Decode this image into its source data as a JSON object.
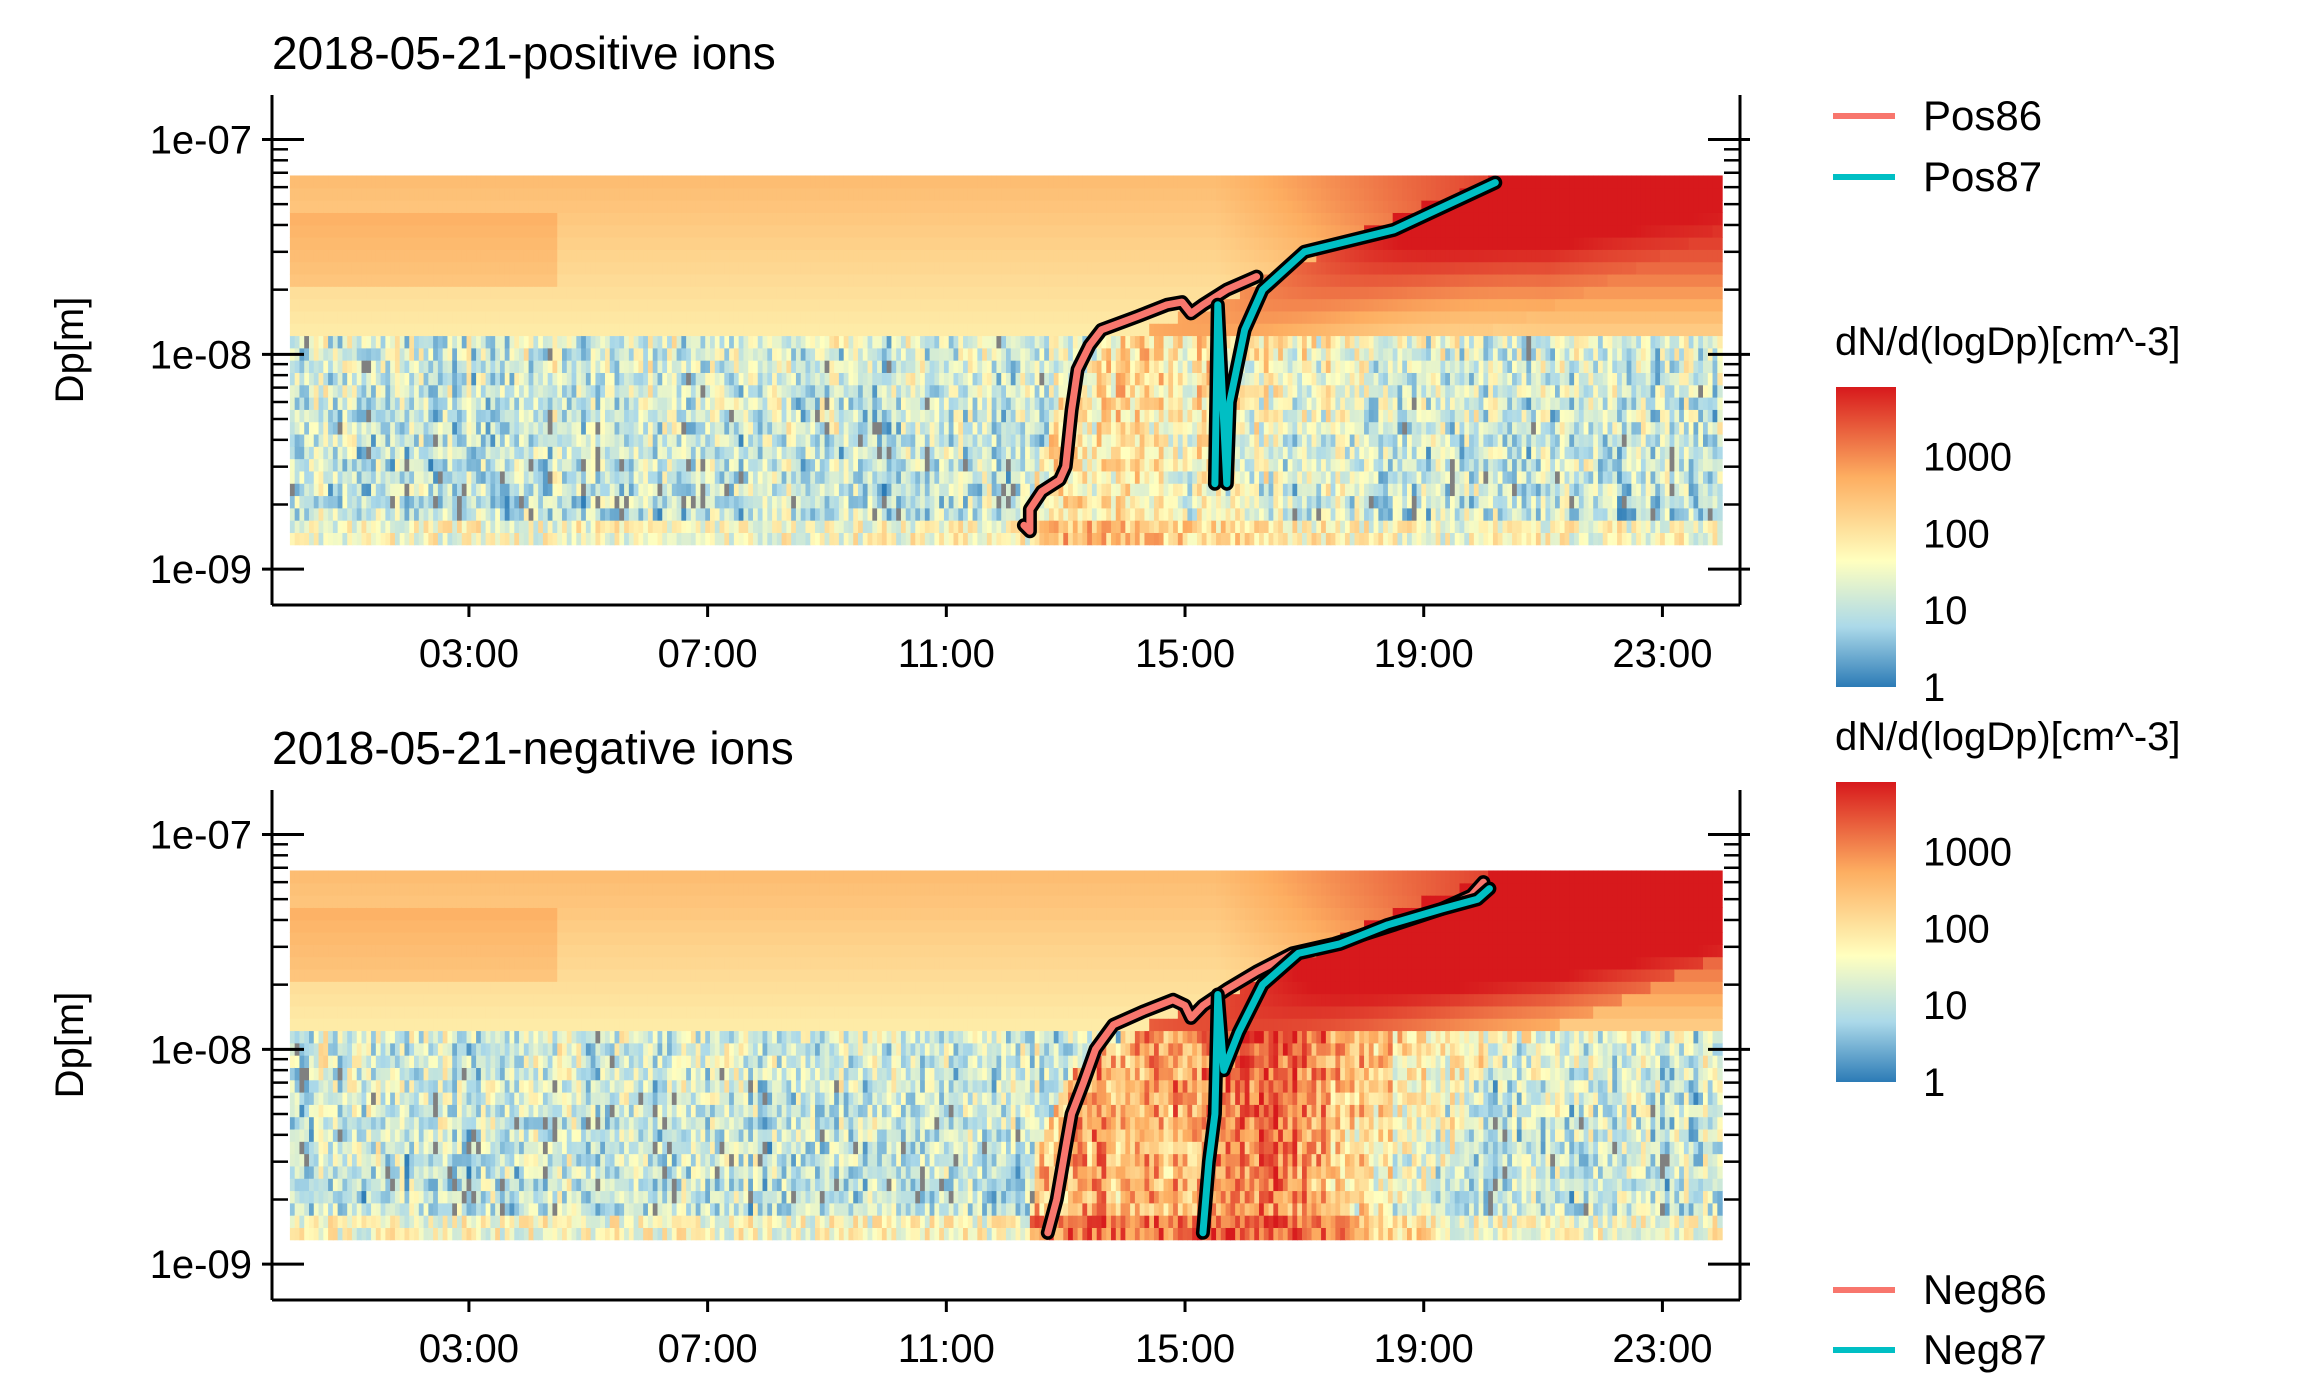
{
  "chart_data": [
    {
      "type": "heatmap",
      "title": "2018-05-21-positive ions",
      "xlabel": "",
      "ylabel": "Dp[m]",
      "x_ticks": [
        "03:00",
        "07:00",
        "11:00",
        "15:00",
        "19:00",
        "23:00"
      ],
      "x_tick_hours": [
        3,
        7,
        11,
        15,
        19,
        23
      ],
      "xlim_hours": [
        -0.3,
        24.3
      ],
      "y_ticks": [
        "1e-07",
        "1e-08",
        "1e-09"
      ],
      "y_tick_values": [
        1e-07,
        1e-08,
        1e-09
      ],
      "ylim": [
        8e-10,
        1.3e-07
      ],
      "y_scale": "log",
      "data_range_hours": [
        0.0,
        24.0
      ],
      "data_range_dp": [
        1.3e-09,
        6.8e-08
      ],
      "colorbar": {
        "title": "dN/d(logDp)[cm^-3]",
        "ticks": [
          "1000",
          "100",
          "10",
          "1"
        ],
        "tick_values": [
          1000,
          100,
          10,
          1
        ],
        "range": [
          1,
          8000
        ],
        "scale": "log",
        "palette": [
          "#2c7bb6",
          "#abd9e9",
          "#ffffbf",
          "#fdae61",
          "#d7191c"
        ],
        "missing_color": "#808080"
      },
      "legend": {
        "position": "top-right",
        "entries": [
          "Pos86",
          "Pos87"
        ]
      },
      "series": [
        {
          "name": "Pos86",
          "color": "#f8766d",
          "points": [
            [
              12.3,
              1.6e-09
            ],
            [
              12.4,
              1.5e-09
            ],
            [
              12.4,
              1.9e-09
            ],
            [
              12.6,
              2.3e-09
            ],
            [
              12.9,
              2.6e-09
            ],
            [
              13.0,
              3e-09
            ],
            [
              13.1,
              5.5e-09
            ],
            [
              13.2,
              8.5e-09
            ],
            [
              13.4,
              1.1e-08
            ],
            [
              13.6,
              1.3e-08
            ],
            [
              14.2,
              1.5e-08
            ],
            [
              14.7,
              1.7e-08
            ],
            [
              14.95,
              1.75e-08
            ],
            [
              15.1,
              1.55e-08
            ],
            [
              15.3,
              1.7e-08
            ],
            [
              15.7,
              2e-08
            ],
            [
              16.2,
              2.3e-08
            ]
          ]
        },
        {
          "name": "Pos87",
          "color": "#00bfc4",
          "points": [
            [
              15.5,
              2.5e-09
            ],
            [
              15.55,
              1.7e-08
            ],
            [
              15.7,
              2.5e-09
            ],
            [
              15.75,
              6e-09
            ],
            [
              16.0,
              1.3e-08
            ],
            [
              16.3,
              2e-08
            ],
            [
              17.0,
              3e-08
            ],
            [
              18.5,
              3.8e-08
            ],
            [
              20.2,
              6.3e-08
            ]
          ]
        }
      ]
    },
    {
      "type": "heatmap",
      "title": "2018-05-21-negative ions",
      "xlabel": "",
      "ylabel": "Dp[m]",
      "x_ticks": [
        "03:00",
        "07:00",
        "11:00",
        "15:00",
        "19:00",
        "23:00"
      ],
      "x_tick_hours": [
        3,
        7,
        11,
        15,
        19,
        23
      ],
      "xlim_hours": [
        -0.3,
        24.3
      ],
      "y_ticks": [
        "1e-07",
        "1e-08",
        "1e-09"
      ],
      "y_tick_values": [
        1e-07,
        1e-08,
        1e-09
      ],
      "ylim": [
        8e-10,
        1.3e-07
      ],
      "y_scale": "log",
      "data_range_hours": [
        0.0,
        24.0
      ],
      "data_range_dp": [
        1.3e-09,
        6.8e-08
      ],
      "colorbar": {
        "title": "dN/d(logDp)[cm^-3]",
        "ticks": [
          "1000",
          "100",
          "10",
          "1"
        ],
        "tick_values": [
          1000,
          100,
          10,
          1
        ],
        "range": [
          1,
          8000
        ],
        "scale": "log",
        "palette": [
          "#2c7bb6",
          "#abd9e9",
          "#ffffbf",
          "#fdae61",
          "#d7191c"
        ],
        "missing_color": "#808080"
      },
      "legend": {
        "position": "bottom-right",
        "entries": [
          "Neg86",
          "Neg87"
        ]
      },
      "series": [
        {
          "name": "Neg86",
          "color": "#f8766d",
          "points": [
            [
              12.7,
              1.4e-09
            ],
            [
              12.85,
              2e-09
            ],
            [
              13.0,
              3.5e-09
            ],
            [
              13.1,
              5e-09
            ],
            [
              13.3,
              7e-09
            ],
            [
              13.5,
              1e-08
            ],
            [
              13.8,
              1.3e-08
            ],
            [
              14.3,
              1.5e-08
            ],
            [
              14.8,
              1.7e-08
            ],
            [
              15.0,
              1.6e-08
            ],
            [
              15.1,
              1.4e-08
            ],
            [
              15.3,
              1.6e-08
            ],
            [
              15.7,
              1.9e-08
            ],
            [
              16.2,
              2.3e-08
            ],
            [
              16.8,
              2.8e-08
            ],
            [
              17.5,
              3.1e-08
            ],
            [
              18.5,
              3.8e-08
            ],
            [
              19.3,
              4.5e-08
            ],
            [
              19.8,
              5.2e-08
            ],
            [
              20.0,
              6e-08
            ]
          ]
        },
        {
          "name": "Neg87",
          "color": "#00bfc4",
          "points": [
            [
              15.3,
              1.4e-09
            ],
            [
              15.4,
              3e-09
            ],
            [
              15.5,
              5e-09
            ],
            [
              15.55,
              1.8e-08
            ],
            [
              15.65,
              8e-09
            ],
            [
              15.9,
              1.2e-08
            ],
            [
              16.3,
              2e-08
            ],
            [
              16.9,
              2.8e-08
            ],
            [
              17.6,
              3.1e-08
            ],
            [
              18.4,
              3.8e-08
            ],
            [
              19.3,
              4.5e-08
            ],
            [
              19.9,
              5e-08
            ],
            [
              20.1,
              5.6e-08
            ]
          ]
        }
      ]
    }
  ]
}
